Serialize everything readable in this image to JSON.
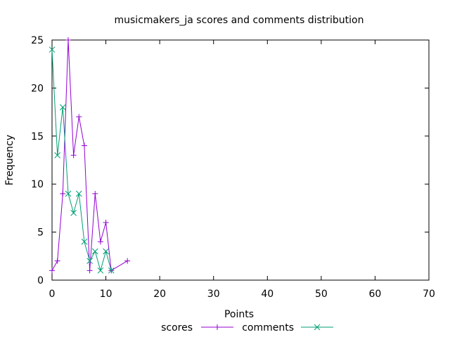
{
  "chart_data": {
    "type": "line",
    "title": "musicmakers_ja scores and comments distribution",
    "xlabel": "Points",
    "ylabel": "Frequency",
    "xlim": [
      0,
      70
    ],
    "ylim": [
      0,
      25
    ],
    "x_ticks": [
      0,
      10,
      20,
      30,
      40,
      50,
      60,
      70
    ],
    "y_ticks": [
      0,
      5,
      10,
      15,
      20,
      25
    ],
    "grid": false,
    "legend_position": "bottom-center",
    "series": [
      {
        "name": "scores",
        "color": "#9400d3",
        "marker": "plus",
        "points": [
          [
            0,
            1
          ],
          [
            1,
            2
          ],
          [
            2,
            9
          ],
          [
            3,
            25
          ],
          [
            4,
            13
          ],
          [
            5,
            17
          ],
          [
            6,
            14
          ],
          [
            7,
            1
          ],
          [
            8,
            9
          ],
          [
            9,
            4
          ],
          [
            10,
            6
          ],
          [
            11,
            1
          ],
          [
            14,
            2
          ]
        ]
      },
      {
        "name": "comments",
        "color": "#009e73",
        "marker": "cross",
        "points": [
          [
            0,
            24
          ],
          [
            1,
            13
          ],
          [
            2,
            18
          ],
          [
            3,
            9
          ],
          [
            4,
            7
          ],
          [
            5,
            9
          ],
          [
            6,
            4
          ],
          [
            7,
            2
          ],
          [
            8,
            3
          ],
          [
            9,
            1
          ],
          [
            10,
            3
          ],
          [
            11,
            1
          ]
        ]
      }
    ]
  }
}
